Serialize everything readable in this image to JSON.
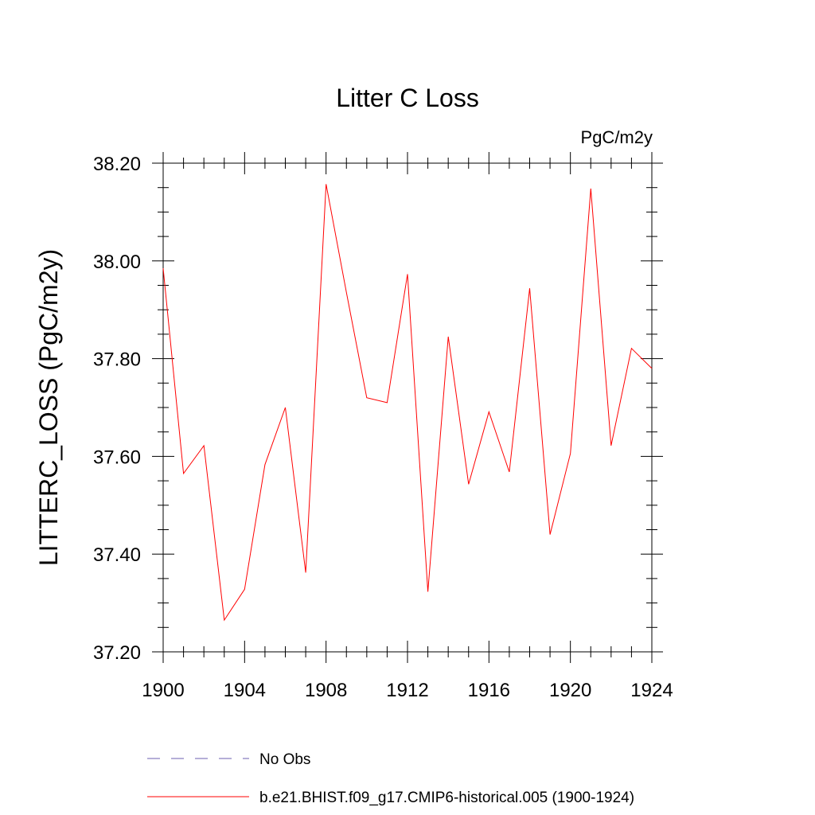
{
  "chart_data": {
    "type": "line",
    "title": "Litter C Loss",
    "units": "PgC/m2y",
    "ylabel": "LITTERC_LOSS  (PgC/m2y)",
    "xlim": [
      1900,
      1924
    ],
    "ylim": [
      37.2,
      38.2
    ],
    "x_ticks": [
      1900,
      1904,
      1908,
      1912,
      1916,
      1920,
      1924
    ],
    "y_ticks": [
      "37.20",
      "37.40",
      "37.60",
      "37.80",
      "38.00",
      "38.20"
    ],
    "series": [
      {
        "name": "b.e21.BHIST.f09_g17.CMIP6-historical.005 (1900-1924)",
        "color": "#ff0000",
        "style": "solid",
        "x": [
          1900,
          1901,
          1902,
          1903,
          1904,
          1905,
          1906,
          1907,
          1908,
          1909,
          1910,
          1911,
          1912,
          1913,
          1914,
          1915,
          1916,
          1917,
          1918,
          1919,
          1920,
          1921,
          1922,
          1923,
          1924
        ],
        "y": [
          37.985,
          37.565,
          37.622,
          37.265,
          37.328,
          37.583,
          37.7,
          37.362,
          38.157,
          37.935,
          37.72,
          37.71,
          37.973,
          37.323,
          37.845,
          37.543,
          37.691,
          37.568,
          37.944,
          37.44,
          37.606,
          38.148,
          37.622,
          37.821,
          37.78
        ]
      }
    ],
    "legend": [
      {
        "label": "No Obs",
        "color": "#6b5fb0",
        "style": "dashed"
      },
      {
        "label": "b.e21.BHIST.f09_g17.CMIP6-historical.005 (1900-1924)",
        "color": "#ff0000",
        "style": "solid"
      }
    ],
    "grid": false,
    "legend_position": "bottom"
  }
}
